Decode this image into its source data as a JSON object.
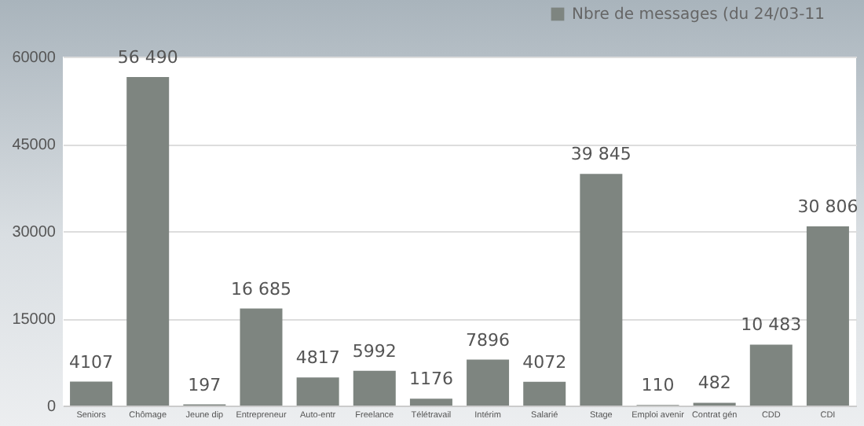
{
  "chart_data": {
    "type": "bar",
    "categories": [
      "Seniors",
      "Chômage",
      "Jeune dip",
      "Entrepreneur",
      "Auto-entr",
      "Freelance",
      "Télétravail",
      "Intérim",
      "Salarié",
      "Stage",
      "Emploi avenir",
      "Contrat gén",
      "CDD",
      "CDI"
    ],
    "series": [
      {
        "name": "Nbre de messages (du 24/03-11",
        "color": "#7e8580",
        "values": [
          4107,
          56490,
          197,
          16685,
          4817,
          5992,
          1176,
          7896,
          4072,
          39845,
          110,
          482,
          10483,
          30806
        ]
      }
    ],
    "value_labels": [
      "4107",
      "56 490",
      "197",
      "16 685",
      "4817",
      "5992",
      "1176",
      "7896",
      "4072",
      "39 845",
      "110",
      "482",
      "10 483",
      "30 806"
    ],
    "ylim": [
      0,
      60000
    ],
    "yticks": [
      0,
      15000,
      30000,
      45000,
      60000
    ],
    "grid": "y",
    "legend": "top right"
  }
}
